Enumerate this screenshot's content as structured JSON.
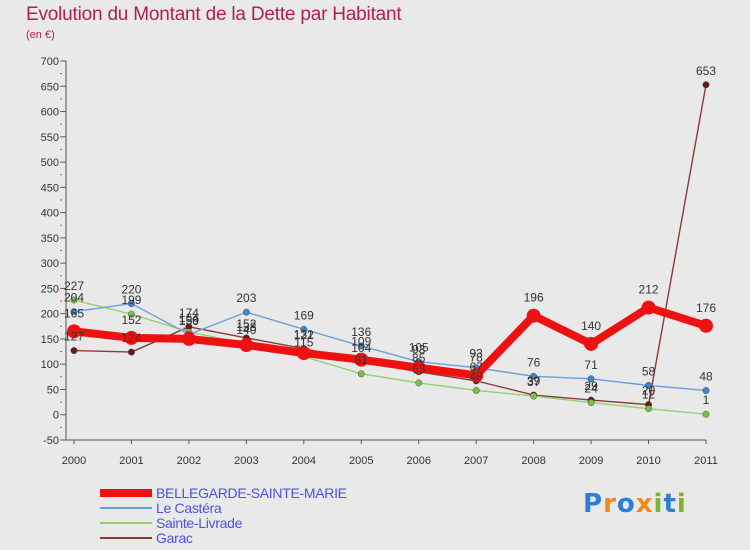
{
  "title": "Evolution du Montant de la Dette par Habitant",
  "subtitle": "(en €)",
  "logo": {
    "letters": [
      "P",
      "r",
      "o",
      "x",
      "i",
      "t",
      "i"
    ],
    "colors": [
      "#2b7fd4",
      "#f08a1c",
      "#2b7fd4",
      "#f08a1c",
      "#7ab52d",
      "#2b7fd4",
      "#7ab52d"
    ]
  },
  "chart_data": {
    "type": "line",
    "title": "Evolution du Montant de la Dette par Habitant",
    "subtitle": "(en €)",
    "x": [
      "2000",
      "2001",
      "2002",
      "2003",
      "2004",
      "2005",
      "2006",
      "2007",
      "2008",
      "2009",
      "2010",
      "2011"
    ],
    "ylim": [
      -50,
      700
    ],
    "yticks": [
      "-50",
      "0",
      "50",
      "100",
      "150",
      "200",
      "250",
      "300",
      "350",
      "400",
      "450",
      "500",
      "550",
      "600",
      "650",
      "700"
    ],
    "grid": false,
    "legend_position": "bottom-left",
    "series": [
      {
        "name": "BELLEGARDE-SAINTE-MARIE",
        "color": "#ee1111",
        "marker_color": "#ee1111",
        "values": [
          165,
          152,
          150,
          138,
          122,
          109,
          93,
          78,
          196,
          140,
          212,
          176
        ],
        "labels": [
          "165",
          "152",
          "150",
          "138",
          "122",
          "109",
          "93",
          "78",
          "196",
          "140",
          "212",
          "176"
        ]
      },
      {
        "name": "Le Castéra",
        "color": "#6aa0d8",
        "marker_color": "#3f86cc",
        "values": [
          204,
          220,
          159,
          203,
          169,
          136,
          105,
          93,
          76,
          71,
          58,
          48
        ],
        "labels": [
          "204",
          "220",
          "159",
          "203",
          "169",
          "136",
          "105",
          "93",
          "76",
          "71",
          "58",
          "48"
        ]
      },
      {
        "name": "Sainte-Livrade",
        "color": "#95d070",
        "marker_color": "#7cc04a",
        "values": [
          227,
          199,
          164,
          140,
          115,
          81,
          63,
          48,
          37,
          24,
          12,
          1
        ],
        "labels": [
          "227",
          "199",
          "164",
          "140",
          "115",
          "81",
          "63",
          "48",
          "37",
          "24",
          "12",
          "1"
        ]
      },
      {
        "name": "Garac",
        "color": "#8c3a3a",
        "marker_color": "#6b1a1a",
        "values": [
          127,
          124,
          174,
          152,
          131,
          104,
          85,
          67,
          39,
          29,
          20,
          653
        ],
        "labels": [
          "127",
          "124",
          "174",
          "152",
          "131",
          "104",
          "85",
          "67",
          "39",
          "29",
          "20",
          "653"
        ]
      }
    ]
  }
}
